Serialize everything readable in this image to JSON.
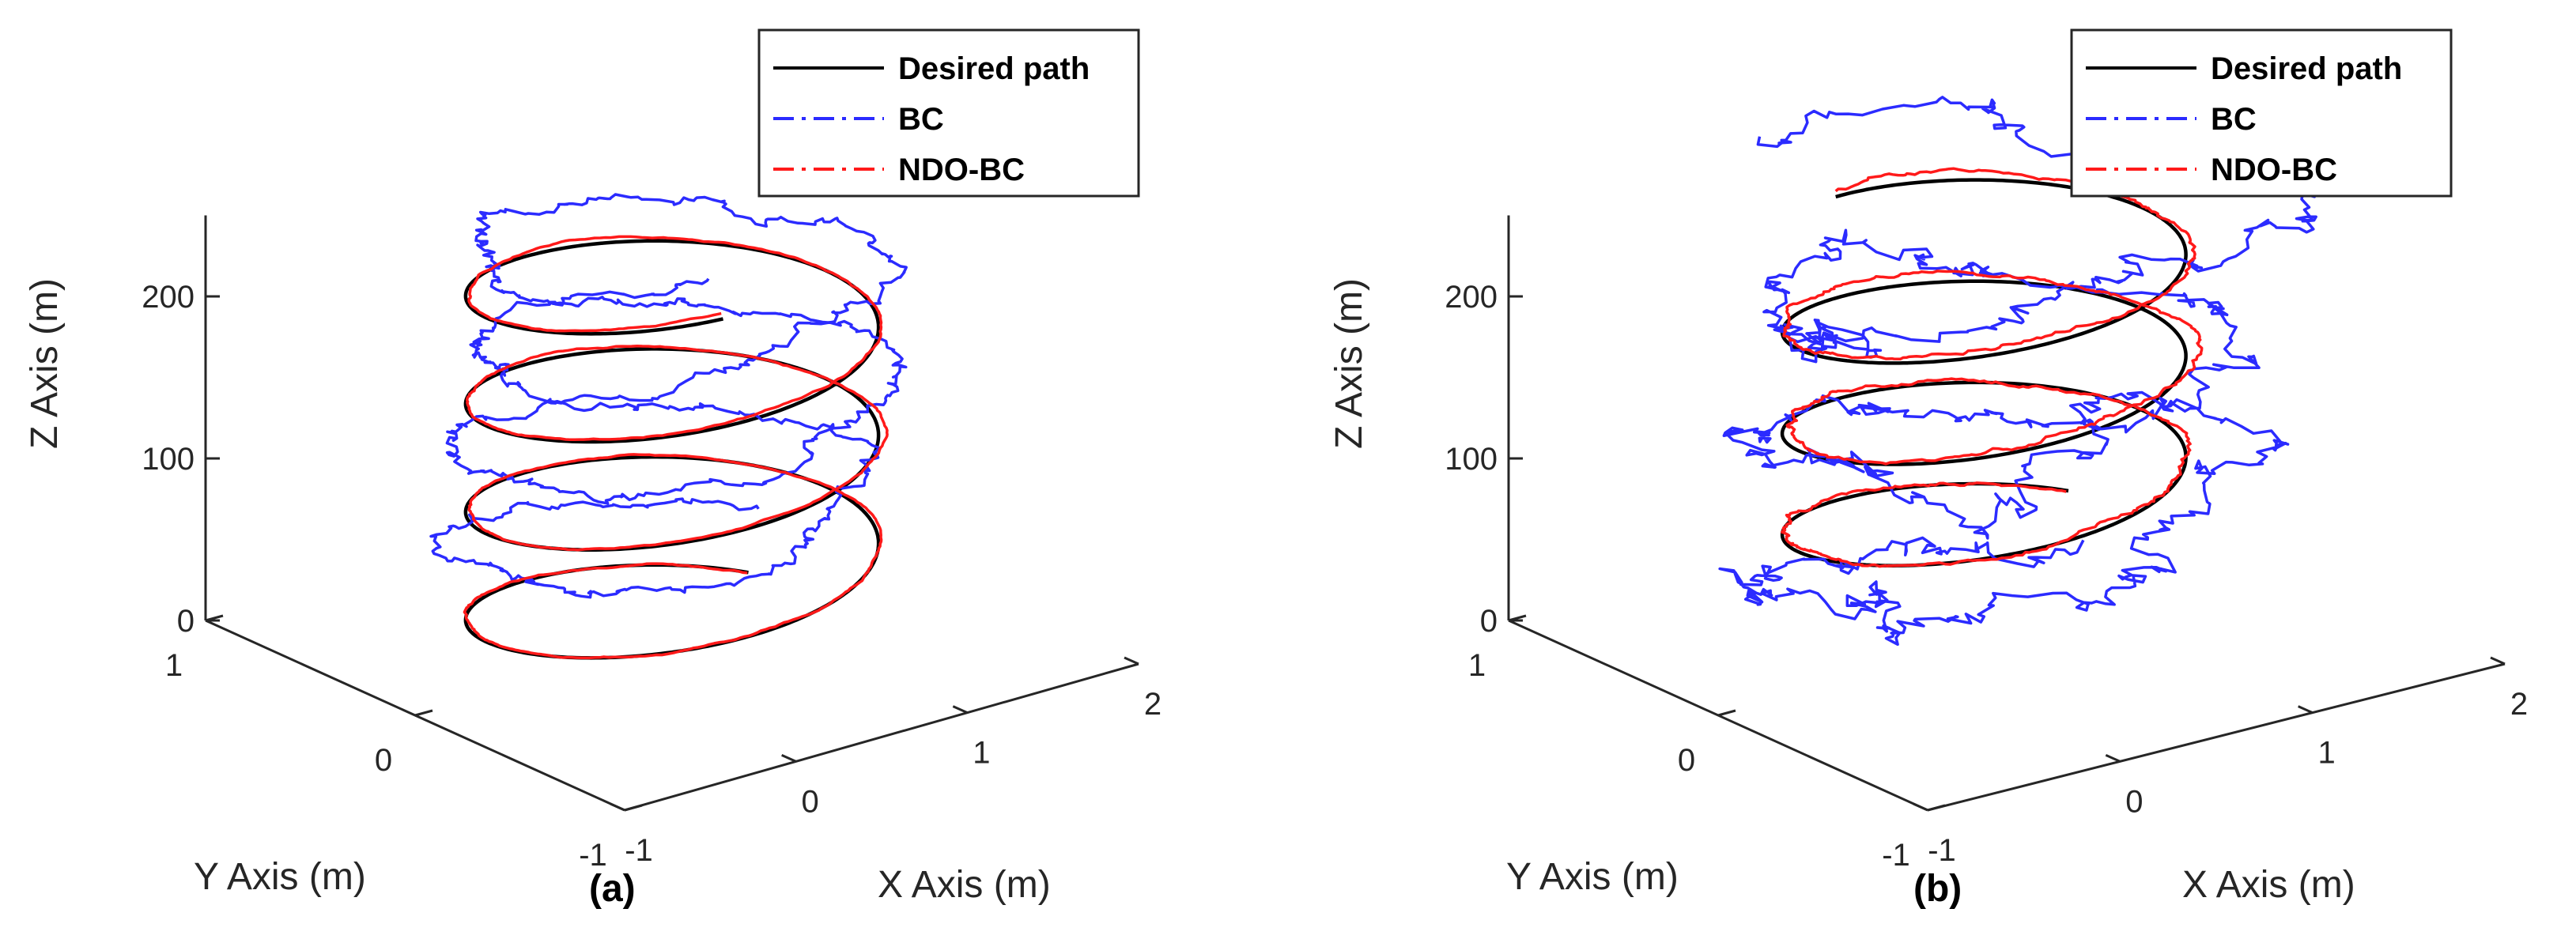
{
  "chart_data": [
    {
      "type": "line",
      "panel_label": "(a)",
      "xlabel": "X Axis (m)",
      "ylabel": "Y Axis (m)",
      "zlabel": "Z Axis (m)",
      "x_ticks": [
        "-1",
        "0",
        "1",
        "2"
      ],
      "y_ticks": [
        "-1",
        "0",
        "1"
      ],
      "z_ticks": [
        "0",
        "100",
        "200"
      ],
      "xlim": [
        -1,
        2
      ],
      "ylim": [
        -1,
        1
      ],
      "zlim": [
        0,
        250
      ],
      "legend_position": "top-right",
      "grid": false,
      "series": [
        {
          "name": "Desired path",
          "color": "#000000",
          "style": "solid",
          "center": [
            0.5,
            0.0
          ],
          "radius": 1.0,
          "z_start": 0,
          "z_end": 240,
          "turns": 3.6,
          "noise": 0
        },
        {
          "name": "BC",
          "color": "#2b2bff",
          "style": "dash-dot",
          "center": [
            0.5,
            0.0
          ],
          "radius": 1.0,
          "z_start": 40,
          "z_end": 265,
          "turns": 3.6,
          "noise": 1
        },
        {
          "name": "NDO-BC",
          "color": "#ff1a1a",
          "style": "dash-dot",
          "center": [
            0.5,
            0.0
          ],
          "radius": 1.0,
          "z_start": 0,
          "z_end": 242,
          "turns": 3.6,
          "noise": 0.15
        }
      ]
    },
    {
      "type": "line",
      "panel_label": "(b)",
      "xlabel": "X Axis (m)",
      "ylabel": "Y Axis (m)",
      "zlabel": "Z Axis (m)",
      "x_ticks": [
        "-1",
        "0",
        "1",
        "2"
      ],
      "y_ticks": [
        "-1",
        "0",
        "1"
      ],
      "z_ticks": [
        "0",
        "100",
        "200"
      ],
      "xlim": [
        -1,
        2
      ],
      "ylim": [
        -1,
        1
      ],
      "zlim": [
        0,
        250
      ],
      "legend_position": "top-right",
      "grid": false,
      "series": [
        {
          "name": "Desired path",
          "color": "#000000",
          "style": "solid",
          "center": [
            0.6,
            0.2
          ],
          "radius": 0.9,
          "z_start": 40,
          "z_end": 240,
          "turns": 3.2,
          "noise": 0
        },
        {
          "name": "BC",
          "color": "#2b2bff",
          "style": "dash-dot",
          "center": [
            0.6,
            0.2
          ],
          "radius": 1.0,
          "z_start": 0,
          "z_end": 270,
          "turns": 3.2,
          "noise": 2.2
        },
        {
          "name": "NDO-BC",
          "color": "#ff1a1a",
          "style": "dash-dot",
          "center": [
            0.6,
            0.2
          ],
          "radius": 0.9,
          "z_start": 40,
          "z_end": 245,
          "turns": 3.2,
          "noise": 0.35
        }
      ]
    }
  ]
}
